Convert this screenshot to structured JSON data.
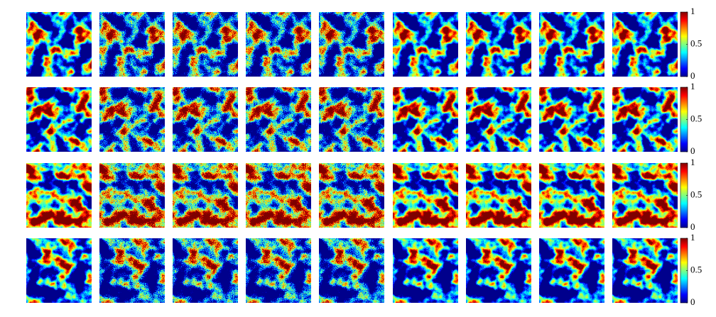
{
  "rows": [
    {
      "colorbar": {
        "ticks": [
          0,
          0.5,
          1
        ]
      }
    },
    {
      "colorbar": {
        "ticks": [
          0,
          0.5,
          1
        ]
      }
    },
    {
      "colorbar": {
        "ticks": [
          0,
          0.5,
          1
        ]
      }
    },
    {
      "colorbar": {
        "ticks": [
          0,
          0.5,
          1
        ]
      }
    }
  ]
}
